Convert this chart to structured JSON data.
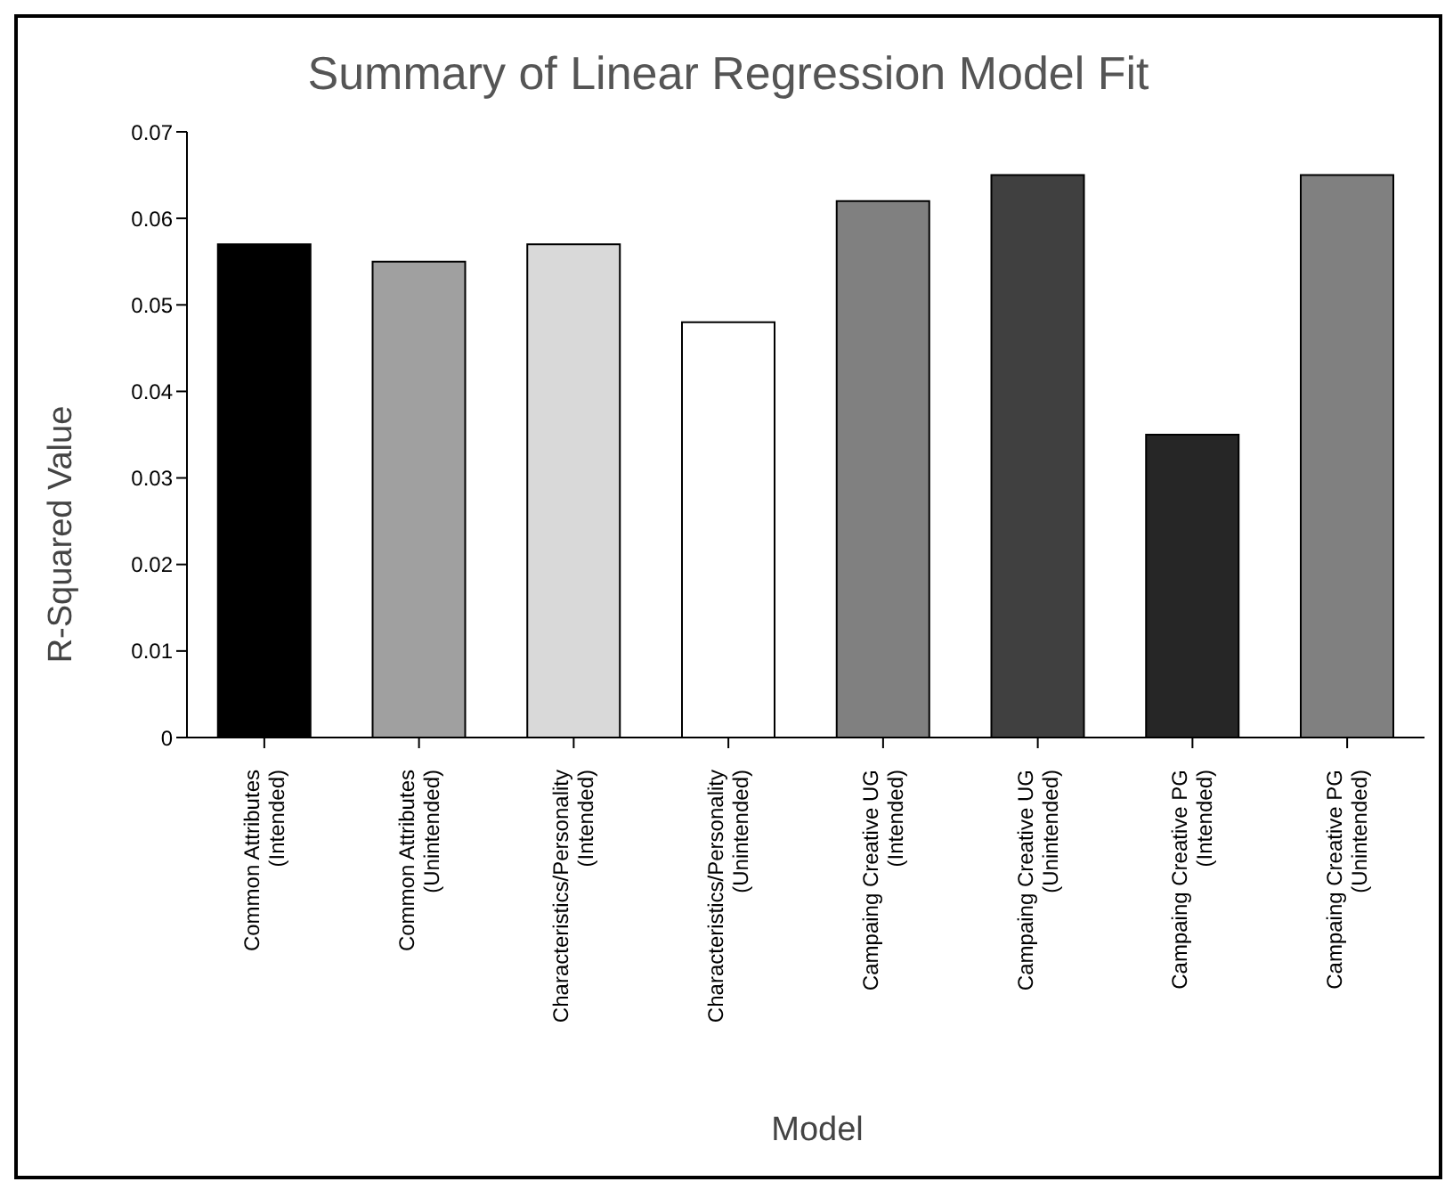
{
  "chart_data": {
    "type": "bar",
    "title": "Summary of Linear Regression Model Fit",
    "xlabel": "Model",
    "ylabel": "R-Squared Value",
    "categories": [
      "Common Attributes\n(Intended)",
      "Common Attributes\n(Unintended)",
      "Characteristics/Personality\n(Intended)",
      "Characteristics/Personality\n(Unintended)",
      "Campaing Creative UG\n(Intended)",
      "Campaing Creative UG\n(Unintended)",
      "Campaing Creative PG\n(Intended)",
      "Campaing Creative PG\n(Unintended)"
    ],
    "values": [
      0.057,
      0.055,
      0.057,
      0.048,
      0.062,
      0.065,
      0.035,
      0.065
    ],
    "colors": [
      "#000000",
      "#a0a0a0",
      "#d9d9d9",
      "#ffffff",
      "#808080",
      "#404040",
      "#262626",
      "#808080"
    ],
    "ylim": [
      0,
      0.07
    ],
    "yticks": [
      0,
      0.01,
      0.02,
      0.03,
      0.04,
      0.05,
      0.06,
      0.07
    ],
    "grid": false,
    "legend": false
  }
}
